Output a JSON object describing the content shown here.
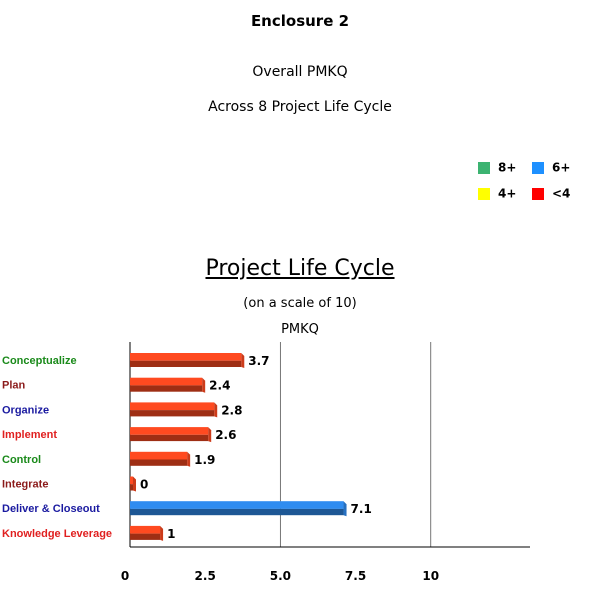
{
  "header": {
    "enclosure": "Enclosure 2",
    "line1": "Overall PMKQ",
    "line2": "Across 8 Project Life Cycle"
  },
  "legend": [
    {
      "label": "8+",
      "color": "#3cb371"
    },
    {
      "label": "6+",
      "color": "#1e90ff"
    },
    {
      "label": "4+",
      "color": "#ffff00"
    },
    {
      "label": "<4",
      "color": "#ff0000"
    }
  ],
  "chart_data": {
    "type": "bar",
    "orientation": "horizontal",
    "title": "Project Life Cycle",
    "subtitle": "(on a scale of 10)",
    "measure": "PMKQ",
    "categories": [
      "Conceptualize",
      "Plan",
      "Organize",
      "Implement",
      "Control",
      "Integrate",
      "Deliver & Closeout",
      "Knowledge Leverage"
    ],
    "values": [
      3.7,
      2.4,
      2.8,
      2.6,
      1.9,
      0,
      7.1,
      1
    ],
    "value_labels": [
      "3.7",
      "2.4",
      "2.8",
      "2.6",
      "1.9",
      "0",
      "7.1",
      "1"
    ],
    "category_colors": [
      "#1a8a1a",
      "#8b1a1a",
      "#1a1aa0",
      "#e02020",
      "#1a8a1a",
      "#8b1a1a",
      "#1a1aa0",
      "#e02020"
    ],
    "bar_colors": [
      "#ff4a20",
      "#ff4a20",
      "#ff4a20",
      "#ff4a20",
      "#ff4a20",
      "#ff4a20",
      "#2f8cf0",
      "#ff4a20"
    ],
    "xlim": [
      0,
      13.3
    ],
    "xticks": [
      "0",
      "2.5",
      "5.0",
      "7.5",
      "10"
    ],
    "xtick_values": [
      0,
      2.5,
      5.0,
      7.5,
      10
    ],
    "grid": "vertical-at-major"
  }
}
